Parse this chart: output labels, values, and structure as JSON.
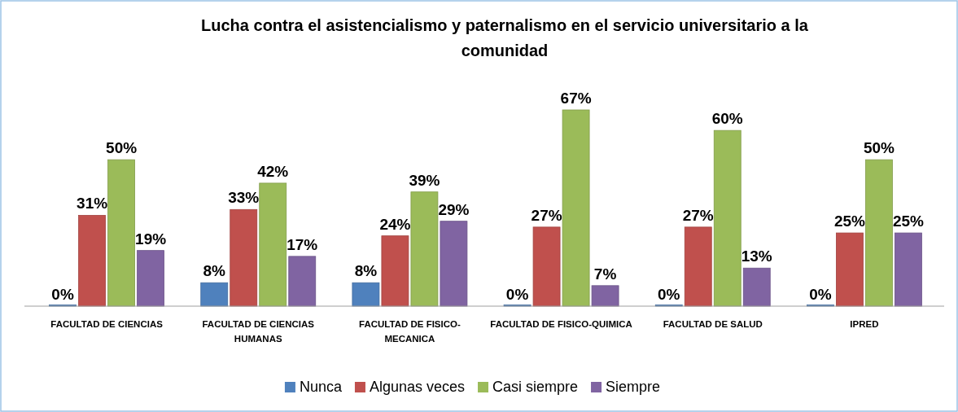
{
  "chart_data": {
    "type": "bar",
    "title": "Lucha contra el asistencialismo y paternalismo en el servicio universitario a la comunidad",
    "categories": [
      "FACULTAD DE CIENCIAS",
      "FACULTAD DE CIENCIAS HUMANAS",
      "FACULTAD DE FISICO-MECANICA",
      "FACULTAD DE FISICO-QUIMICA",
      "FACULTAD DE SALUD",
      "IPRED"
    ],
    "series": [
      {
        "name": "Nunca",
        "color": "#4f81bd",
        "values": [
          0,
          8,
          8,
          0,
          0,
          0
        ],
        "value_labels": [
          "0%",
          "8%",
          "8%",
          "0%",
          "0%",
          "0%"
        ]
      },
      {
        "name": "Algunas veces",
        "color": "#c0504d",
        "values": [
          31,
          33,
          24,
          27,
          27,
          25
        ],
        "value_labels": [
          "31%",
          "33%",
          "24%",
          "27%",
          "27%",
          "25%"
        ]
      },
      {
        "name": "Casi siempre",
        "color": "#9bbb59",
        "values": [
          50,
          42,
          39,
          67,
          60,
          50
        ],
        "value_labels": [
          "50%",
          "42%",
          "39%",
          "67%",
          "60%",
          "50%"
        ]
      },
      {
        "name": "Siempre",
        "color": "#8064a2",
        "values": [
          19,
          17,
          29,
          7,
          13,
          25
        ],
        "value_labels": [
          "19%",
          "17%",
          "29%",
          "7%",
          "13%",
          "25%"
        ]
      }
    ],
    "legend": "bottom"
  }
}
